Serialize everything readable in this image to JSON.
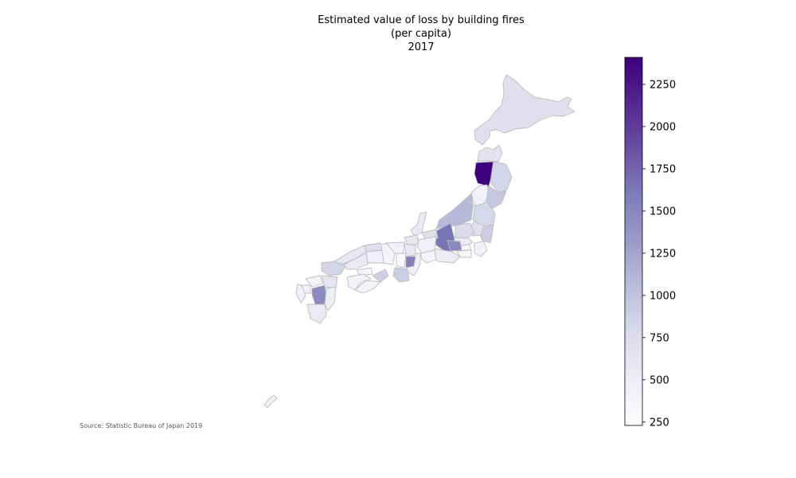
{
  "title": {
    "line1": "Estimated value of loss by building fires",
    "line2": "(per capita)",
    "line3": "2017"
  },
  "source": "Source: Statistic Bureau of Japan 2019",
  "colors": {
    "colormap": [
      "#fcfbfd",
      "#efedf5",
      "#dadaeb",
      "#bcbddc",
      "#9e9ac8",
      "#807dba",
      "#6a51a3",
      "#54278f",
      "#3f007d"
    ],
    "border": "#bdbdbd"
  },
  "chart_data": {
    "type": "choropleth",
    "colorbar": {
      "min": 230,
      "max": 2410,
      "ticks": [
        250,
        500,
        750,
        1000,
        1250,
        1500,
        1750,
        2000,
        2250
      ]
    },
    "regions": [
      {
        "name": "Hokkaido",
        "value": 700
      },
      {
        "name": "Aomori",
        "value": 640
      },
      {
        "name": "Akita",
        "value": 2410
      },
      {
        "name": "Iwate",
        "value": 820
      },
      {
        "name": "Yamagata",
        "value": 430
      },
      {
        "name": "Miyagi",
        "value": 950
      },
      {
        "name": "Fukushima",
        "value": 800
      },
      {
        "name": "Niigata",
        "value": 1080
      },
      {
        "name": "Ibaraki",
        "value": 900
      },
      {
        "name": "Tochigi",
        "value": 700
      },
      {
        "name": "Gunma",
        "value": 760
      },
      {
        "name": "Saitama",
        "value": 560
      },
      {
        "name": "Chiba",
        "value": 420
      },
      {
        "name": "Tokyo",
        "value": 320
      },
      {
        "name": "Kanagawa",
        "value": 300
      },
      {
        "name": "Nagano",
        "value": 1650
      },
      {
        "name": "Yamanashi",
        "value": 1500
      },
      {
        "name": "Shizuoka",
        "value": 520
      },
      {
        "name": "Toyama",
        "value": 720
      },
      {
        "name": "Ishikawa",
        "value": 560
      },
      {
        "name": "Fukui",
        "value": 580
      },
      {
        "name": "Gifu",
        "value": 480
      },
      {
        "name": "Aichi",
        "value": 380
      },
      {
        "name": "Mie",
        "value": 470
      },
      {
        "name": "Shiga",
        "value": 600
      },
      {
        "name": "Kyoto",
        "value": 420
      },
      {
        "name": "Nara",
        "value": 1580
      },
      {
        "name": "Osaka",
        "value": 300
      },
      {
        "name": "Hyogo",
        "value": 380
      },
      {
        "name": "Wakayama",
        "value": 900
      },
      {
        "name": "Tottori",
        "value": 700
      },
      {
        "name": "Shimane",
        "value": 600
      },
      {
        "name": "Okayama",
        "value": 480
      },
      {
        "name": "Hiroshima",
        "value": 560
      },
      {
        "name": "Yamaguchi",
        "value": 820
      },
      {
        "name": "Tokushima",
        "value": 880
      },
      {
        "name": "Kagawa",
        "value": 380
      },
      {
        "name": "Ehime",
        "value": 420
      },
      {
        "name": "Kochi",
        "value": 360
      },
      {
        "name": "Fukuoka",
        "value": 380
      },
      {
        "name": "Saga",
        "value": 420
      },
      {
        "name": "Nagasaki",
        "value": 450
      },
      {
        "name": "Kumamoto",
        "value": 1480
      },
      {
        "name": "Oita",
        "value": 620
      },
      {
        "name": "Miyazaki",
        "value": 520
      },
      {
        "name": "Kagoshima",
        "value": 560
      },
      {
        "name": "Okinawa",
        "value": 430
      }
    ]
  }
}
